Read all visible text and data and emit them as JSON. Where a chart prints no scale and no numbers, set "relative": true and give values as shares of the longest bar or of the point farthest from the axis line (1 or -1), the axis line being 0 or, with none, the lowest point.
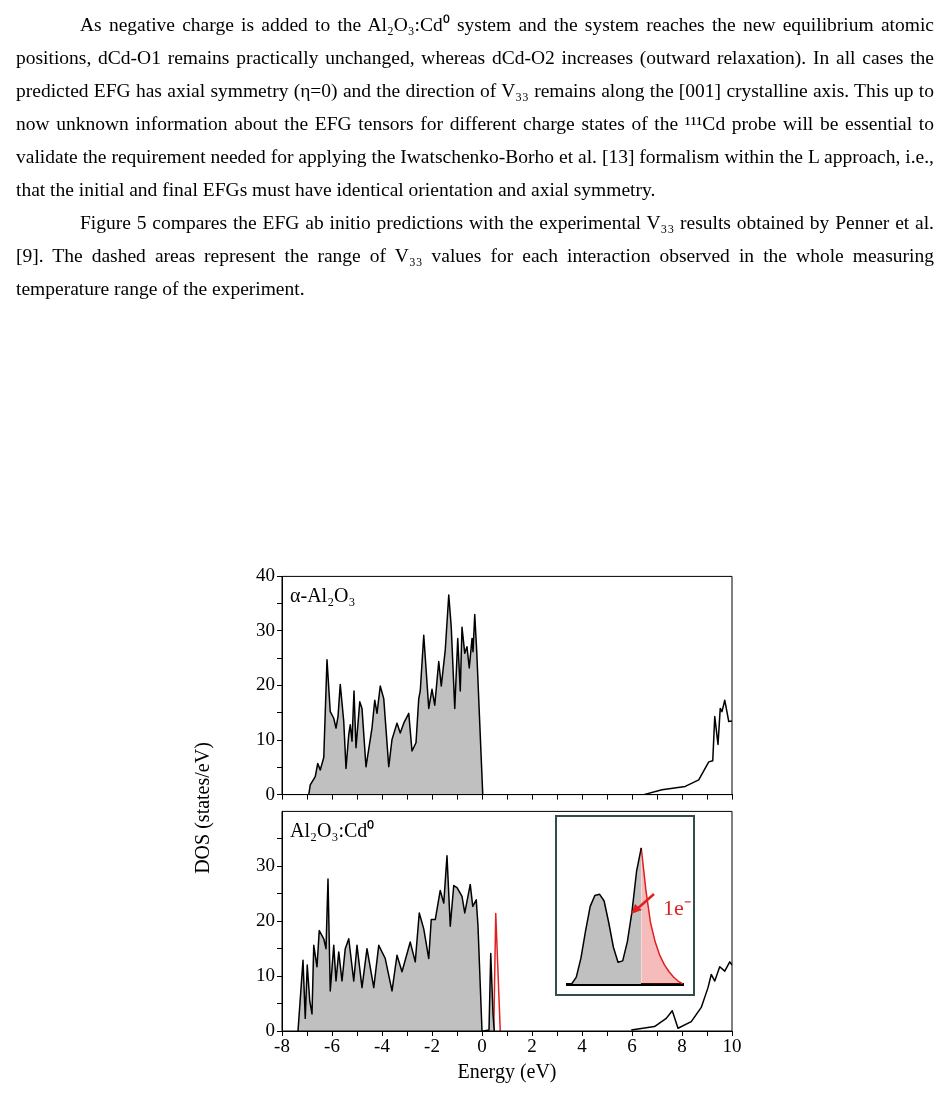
{
  "chart_data": [
    {
      "type": "other",
      "annotations": [
        "As negative charge is added to the Al₂O₃:Cd⁰ system and the system reaches the new equilibrium atomic positions, dCd-O1 remains practically unchanged, whereas dCd-O2 increases (outward relaxation). In all cases the predicted EFG has axial symmetry (η=0) and the direction of V₃₃ remains along the [001] crystalline axis. This up to now unknown information about the EFG tensors for different charge states of the ¹¹¹Cd probe will be essential to validate the requirement needed for applying the Iwatschenko-Borho et al. [13] formalism within the L approach, i.e., that the initial and final EFGs must have identical orientation and axial symmetry.",
        "Figure 5 compares the EFG ab initio predictions with the experimental V₃₃ results obtained by Penner et al. [9]. The dashed areas represent the range of V₃₃ values for each interaction observed in the whole measuring temperature range of the experiment."
      ]
    },
    {
      "type": "area",
      "title": "α-Al₂O₃",
      "ylabel": "DOS (states/eV)",
      "xlim": [
        -8,
        10
      ],
      "ylim": [
        0,
        40
      ],
      "tick_labels": "y",
      "xticks": [
        -8,
        {
          "value": -7,
          "label": null
        },
        -6,
        {
          "value": -5,
          "label": null
        },
        -4,
        {
          "value": -3,
          "label": null
        },
        -2,
        {
          "value": -1,
          "label": null
        },
        0,
        {
          "value": 1,
          "label": null
        },
        2,
        {
          "value": 3,
          "label": null
        },
        4,
        {
          "value": 5,
          "label": null
        },
        6,
        {
          "value": 7,
          "label": null
        },
        8,
        {
          "value": 9,
          "label": null
        },
        10
      ],
      "yticks": [
        0,
        {
          "value": 5,
          "label": null
        },
        10,
        {
          "value": 15,
          "label": null
        },
        20,
        {
          "value": 25,
          "label": null
        },
        30,
        {
          "value": 35,
          "label": null
        },
        40
      ],
      "series": [
        {
          "type": "area",
          "color": "#c0c0c0",
          "x": [
            -6.93,
            -6.87,
            -6.67,
            -6.57,
            -6.47,
            -6.33,
            -6.2,
            -6.07,
            -5.93,
            -5.84,
            -5.76,
            -5.67,
            -5.53,
            -5.44,
            -5.33,
            -5.27,
            -5.2,
            -5.12,
            -5.04,
            -4.89,
            -4.8,
            -4.64,
            -4.4,
            -4.29,
            -4.2,
            -4.07,
            -3.93,
            -3.73,
            -3.6,
            -3.4,
            -3.27,
            -3.13,
            -2.93,
            -2.8,
            -2.64,
            -2.53,
            -2.47,
            -2.33,
            -2.13,
            -2,
            -1.89,
            -1.73,
            -1.63,
            -1.47,
            -1.33,
            -1.23,
            -1.09,
            -0.97,
            -0.87,
            -0.8,
            -0.69,
            -0.6,
            -0.51,
            -0.4,
            -0.36,
            -0.29,
            -0.21,
            0.03
          ],
          "values": [
            0,
            1.8,
            3.3,
            5.7,
            4.5,
            6.8,
            24.7,
            15.2,
            14,
            12.2,
            14.3,
            20.2,
            13.4,
            4.8,
            11,
            12.8,
            9.8,
            19,
            8.6,
            17,
            15.8,
            5.1,
            12.2,
            17.3,
            14.9,
            19.9,
            17.6,
            5.1,
            10.1,
            13.1,
            11.3,
            13.1,
            14.9,
            8,
            9.5,
            17.6,
            19,
            29.2,
            15.8,
            19.3,
            16.4,
            24.4,
            19.9,
            26.5,
            36.6,
            30.7,
            15.8,
            28.6,
            19,
            30.7,
            25.9,
            27.1,
            23.2,
            28.6,
            26.2,
            33,
            26.2,
            0
          ]
        },
        {
          "type": "line",
          "color": "#000000",
          "x": [
            6.47,
            7.2,
            8.13,
            8.67,
            9.07,
            9.23,
            9.31,
            9.44,
            9.53,
            9.6,
            9.71,
            9.87,
            10
          ],
          "values": [
            0,
            0.9,
            1.5,
            2.7,
            6,
            6.2,
            14.3,
            9.2,
            15.8,
            15.2,
            17.3,
            13.4,
            13.5
          ]
        }
      ]
    },
    {
      "type": "area",
      "title": "Al₂O₃:Cd⁰",
      "xlabel": "Energy (eV)",
      "xlim": [
        -8,
        10
      ],
      "ylim": [
        0,
        40
      ],
      "xticks": [
        -8,
        {
          "value": -7,
          "label": null
        },
        -6,
        {
          "value": -5,
          "label": null
        },
        -4,
        {
          "value": -3,
          "label": null
        },
        -2,
        {
          "value": -1,
          "label": null
        },
        0,
        {
          "value": 1,
          "label": null
        },
        2,
        {
          "value": 3,
          "label": null
        },
        4,
        {
          "value": 5,
          "label": null
        },
        6,
        {
          "value": 7,
          "label": null
        },
        8,
        {
          "value": 9,
          "label": null
        },
        10
      ],
      "yticks": [
        0,
        {
          "value": 5,
          "label": null
        },
        10,
        {
          "value": 15,
          "label": null
        },
        20,
        {
          "value": 25,
          "label": null
        },
        30,
        {
          "value": 35,
          "label": null
        }
      ],
      "series": [
        {
          "type": "area",
          "color": "#c0c0c0",
          "x": [
            -7.36,
            -7.16,
            -7.07,
            -6.99,
            -6.89,
            -6.8,
            -6.73,
            -6.6,
            -6.51,
            -6.33,
            -6.24,
            -6.16,
            -6.07,
            -5.93,
            -5.84,
            -5.73,
            -5.6,
            -5.47,
            -5.33,
            -5.13,
            -5,
            -4.8,
            -4.6,
            -4.33,
            -4.13,
            -3.87,
            -3.6,
            -3.4,
            -3.2,
            -2.87,
            -2.67,
            -2.51,
            -2.33,
            -2.13,
            -2.03,
            -1.87,
            -1.67,
            -1.53,
            -1.4,
            -1.27,
            -1.13,
            -1,
            -0.8,
            -0.69,
            -0.47,
            -0.37,
            -0.23,
            -0.16,
            0,
            0.07,
            0.28,
            0.35,
            0.44,
            0.49
          ],
          "values": [
            0,
            12.9,
            2.3,
            12,
            5.5,
            3.1,
            15.6,
            11.7,
            18.3,
            16.8,
            15,
            27.7,
            7.3,
            15.6,
            9.1,
            14.4,
            9.1,
            15,
            16.8,
            9.1,
            15.6,
            7.9,
            15,
            7.9,
            15.6,
            13.2,
            7.3,
            13.8,
            10.8,
            16.2,
            12.6,
            21.5,
            18.6,
            13.2,
            20.3,
            20.3,
            25.6,
            23.3,
            31.9,
            19.1,
            26.5,
            26.1,
            24.5,
            21.5,
            26.7,
            22.7,
            23.9,
            19.1,
            0,
            0,
            0.2,
            14.1,
            3.1,
            0
          ]
        },
        {
          "type": "line",
          "color": "#e02020",
          "x": [
            0.47,
            0.55,
            0.73
          ],
          "values": [
            0,
            21.4,
            0
          ]
        },
        {
          "type": "line",
          "color": "#000000",
          "x": [
            5.97,
            6.9,
            7.37,
            7.61,
            7.84,
            8.37,
            8.77,
            9.04,
            9.17,
            9.31,
            9.51,
            9.71,
            9.91,
            10
          ],
          "values": [
            0.2,
            0.8,
            2.3,
            3.7,
            0.5,
            1.7,
            4.3,
            7.9,
            10.3,
            9.1,
            11.7,
            10.9,
            12.6,
            12
          ]
        }
      ]
    },
    {
      "type": "area",
      "relative": true,
      "annotations": [
        "1e⁻"
      ],
      "categories": [
        null,
        null,
        null,
        null,
        null,
        null,
        null,
        null,
        null,
        null,
        null,
        null,
        null,
        null,
        null,
        null,
        null,
        null,
        null,
        null,
        null,
        null,
        null,
        null,
        null,
        null
      ],
      "series": [
        {
          "type": "area",
          "color": "#c0c0c0",
          "values": [
            0,
            0,
            0.05,
            0.19,
            0.39,
            0.57,
            0.65,
            0.66,
            0.61,
            0.45,
            0.27,
            0.16,
            0.17,
            0.31,
            0.53,
            0.83,
            1,
            null,
            null,
            null,
            null,
            null,
            null,
            null,
            null,
            null
          ]
        },
        {
          "type": "area",
          "color": "#e02020",
          "values": [
            null,
            null,
            null,
            null,
            null,
            null,
            null,
            null,
            null,
            null,
            null,
            null,
            null,
            null,
            null,
            null,
            1,
            0.69,
            0.45,
            0.31,
            0.21,
            0.14,
            0.09,
            0.05,
            0.02,
            0
          ]
        }
      ]
    }
  ]
}
